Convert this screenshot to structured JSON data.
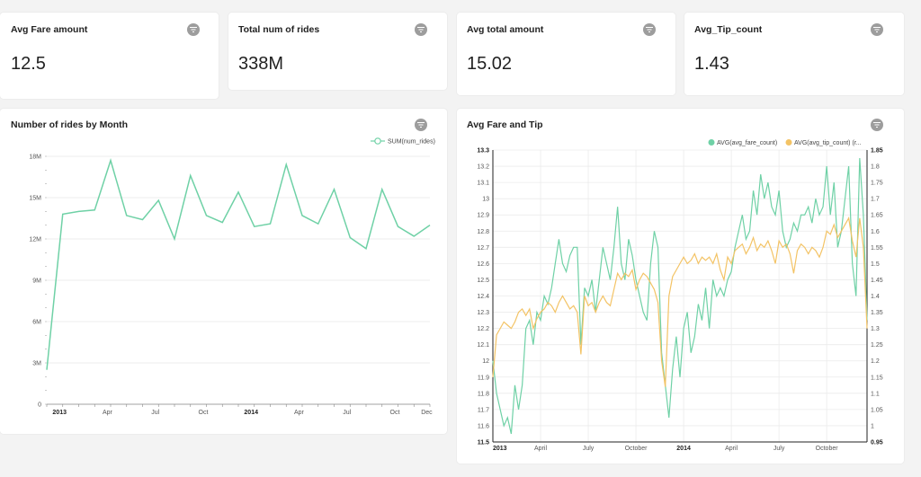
{
  "kpis": [
    {
      "title": "Avg Fare amount",
      "value": "12.5"
    },
    {
      "title": "Total num of rides",
      "value": "338M"
    },
    {
      "title": "Avg total amount",
      "value": "15.02"
    },
    {
      "title": "Avg_Tip_count",
      "value": "1.43"
    }
  ],
  "icons": {
    "filter": "filter-icon"
  },
  "colors": {
    "green": "#6fd1a6",
    "yellow": "#f3c365"
  },
  "chart1_title": "Number of rides by Month",
  "chart2_title": "Avg Fare and Tip",
  "chart_data": [
    {
      "type": "line",
      "title": "Number of rides by Month",
      "legend": "top-right",
      "grid": true,
      "ylim": [
        0,
        18000000
      ],
      "y_ticks": [
        "0",
        "3M",
        "6M",
        "9M",
        "12M",
        "15M",
        "18M"
      ],
      "x_ticks": [
        "2013",
        "Apr",
        "Jul",
        "Oct",
        "2014",
        "Apr",
        "Jul",
        "Oct",
        "Dec"
      ],
      "series": [
        {
          "name": "SUM(num_rides)",
          "color": "#6fd1a6",
          "values": [
            2.5,
            13.8,
            14.0,
            14.1,
            17.7,
            13.7,
            13.4,
            14.8,
            12.0,
            16.6,
            13.7,
            13.2,
            15.4,
            12.9,
            13.1,
            17.4,
            13.7,
            13.1,
            15.6,
            12.1,
            11.3,
            15.6,
            12.9,
            12.2,
            13.0
          ],
          "unit": "M"
        }
      ]
    },
    {
      "type": "line",
      "title": "Avg Fare and Tip",
      "legend": "top-right",
      "grid": true,
      "ylim_left": [
        11.5,
        13.3
      ],
      "ylim_right": [
        0.95,
        1.85
      ],
      "y_ticks_left": [
        "11.5",
        "11.6",
        "11.7",
        "11.8",
        "11.9",
        "12",
        "12.1",
        "12.2",
        "12.3",
        "12.4",
        "12.5",
        "12.6",
        "12.7",
        "12.8",
        "12.9",
        "13",
        "13.1",
        "13.2",
        "13.3"
      ],
      "y_ticks_right": [
        "0.95",
        "1",
        "1.05",
        "1.1",
        "1.15",
        "1.2",
        "1.25",
        "1.3",
        "1.35",
        "1.4",
        "1.45",
        "1.5",
        "1.55",
        "1.6",
        "1.65",
        "1.7",
        "1.75",
        "1.8",
        "1.85"
      ],
      "x_ticks": [
        "2013",
        "April",
        "July",
        "October",
        "2014",
        "April",
        "July",
        "October"
      ],
      "series": [
        {
          "name": "AVG(avg_fare_count)",
          "legend_label": "AVG(avg_fare_count)",
          "axis": "left",
          "color": "#6fd1a6",
          "values": [
            12.0,
            11.8,
            11.7,
            11.6,
            11.65,
            11.55,
            11.85,
            11.7,
            11.85,
            12.2,
            12.25,
            12.1,
            12.3,
            12.25,
            12.4,
            12.35,
            12.45,
            12.6,
            12.75,
            12.6,
            12.55,
            12.65,
            12.7,
            12.7,
            12.1,
            12.45,
            12.4,
            12.5,
            12.3,
            12.5,
            12.7,
            12.6,
            12.5,
            12.7,
            12.95,
            12.6,
            12.5,
            12.75,
            12.65,
            12.5,
            12.4,
            12.3,
            12.25,
            12.6,
            12.8,
            12.7,
            12.05,
            11.85,
            11.65,
            11.95,
            12.15,
            11.9,
            12.2,
            12.3,
            12.05,
            12.15,
            12.35,
            12.25,
            12.45,
            12.2,
            12.5,
            12.4,
            12.45,
            12.4,
            12.5,
            12.55,
            12.7,
            12.8,
            12.9,
            12.75,
            12.8,
            13.05,
            12.9,
            13.15,
            13.0,
            13.1,
            12.95,
            12.9,
            13.05,
            12.8,
            12.7,
            12.75,
            12.85,
            12.8,
            12.9,
            12.9,
            12.95,
            12.85,
            13.0,
            12.9,
            12.95,
            13.2,
            12.9,
            13.1,
            12.7,
            12.8,
            13.0,
            13.2,
            12.6,
            12.4,
            13.25,
            12.9,
            12.25
          ]
        },
        {
          "name": "AVG(avg_tip_count) (right)",
          "legend_label": "AVG(avg_tip_count) (r...",
          "axis": "right",
          "color": "#f3c365",
          "values": [
            1.15,
            1.28,
            1.3,
            1.32,
            1.31,
            1.3,
            1.32,
            1.35,
            1.36,
            1.34,
            1.36,
            1.3,
            1.33,
            1.35,
            1.36,
            1.38,
            1.37,
            1.35,
            1.38,
            1.4,
            1.38,
            1.36,
            1.37,
            1.35,
            1.22,
            1.4,
            1.37,
            1.38,
            1.35,
            1.38,
            1.4,
            1.38,
            1.37,
            1.42,
            1.47,
            1.45,
            1.47,
            1.46,
            1.48,
            1.42,
            1.45,
            1.47,
            1.46,
            1.44,
            1.42,
            1.38,
            1.2,
            1.12,
            1.4,
            1.46,
            1.48,
            1.5,
            1.52,
            1.5,
            1.51,
            1.53,
            1.5,
            1.52,
            1.51,
            1.52,
            1.5,
            1.53,
            1.48,
            1.45,
            1.52,
            1.5,
            1.54,
            1.55,
            1.56,
            1.53,
            1.55,
            1.58,
            1.54,
            1.56,
            1.55,
            1.57,
            1.54,
            1.5,
            1.57,
            1.55,
            1.56,
            1.53,
            1.47,
            1.54,
            1.56,
            1.55,
            1.53,
            1.55,
            1.54,
            1.52,
            1.55,
            1.6,
            1.59,
            1.62,
            1.58,
            1.6,
            1.62,
            1.64,
            1.57,
            1.52,
            1.64,
            1.55,
            1.3
          ]
        }
      ]
    }
  ]
}
